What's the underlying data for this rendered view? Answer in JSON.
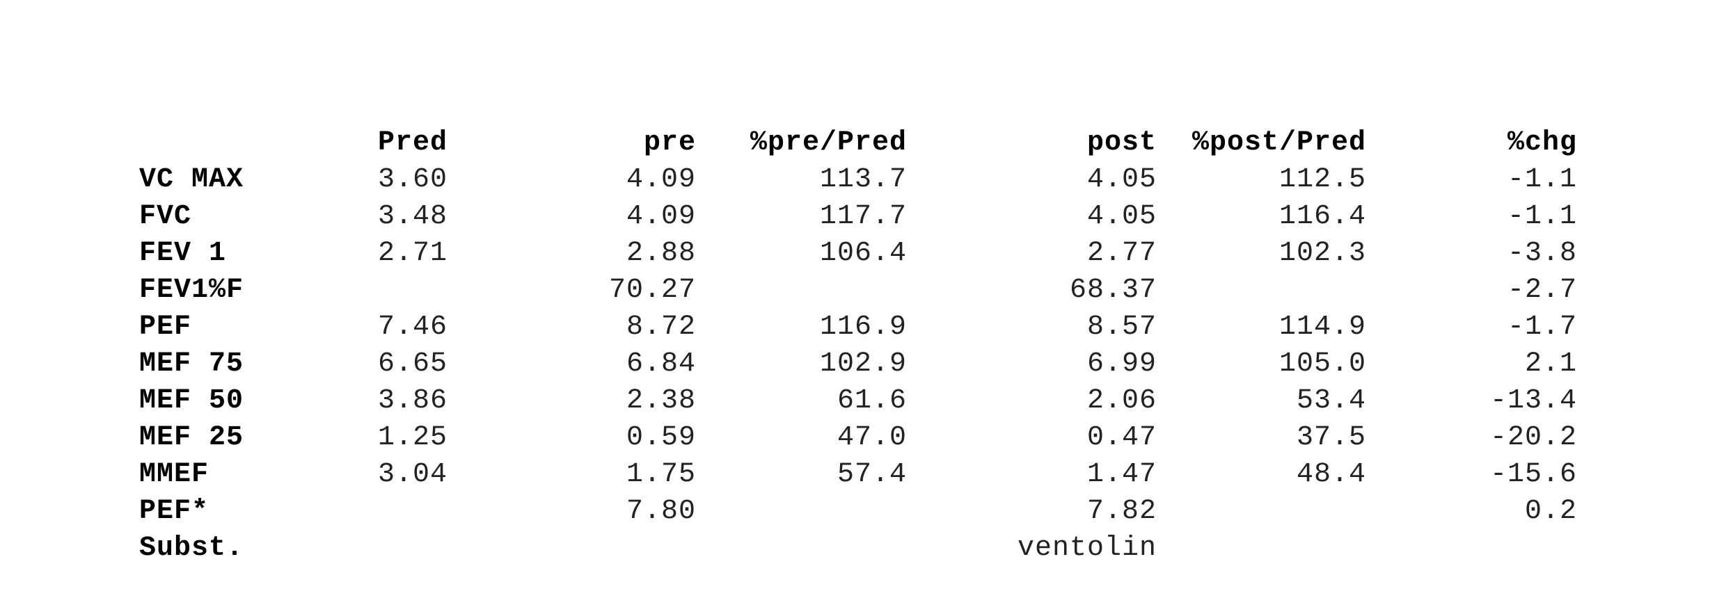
{
  "headers": {
    "pred": "Pred",
    "pre": "pre",
    "pre_pct_pred": "%pre/Pred",
    "post": "post",
    "post_pct_pred": "%post/Pred",
    "chg": "%chg"
  },
  "rows": [
    {
      "label": "VC MAX",
      "pred": "3.60",
      "pre": "4.09",
      "pre_pct_pred": "113.7",
      "post": "4.05",
      "post_pct_pred": "112.5",
      "chg": "-1.1"
    },
    {
      "label": "FVC",
      "pred": "3.48",
      "pre": "4.09",
      "pre_pct_pred": "117.7",
      "post": "4.05",
      "post_pct_pred": "116.4",
      "chg": "-1.1"
    },
    {
      "label": "FEV 1",
      "pred": "2.71",
      "pre": "2.88",
      "pre_pct_pred": "106.4",
      "post": "2.77",
      "post_pct_pred": "102.3",
      "chg": "-3.8"
    },
    {
      "label": "FEV1%F",
      "pred": "",
      "pre": "70.27",
      "pre_pct_pred": "",
      "post": "68.37",
      "post_pct_pred": "",
      "chg": "-2.7"
    },
    {
      "label": "PEF",
      "pred": "7.46",
      "pre": "8.72",
      "pre_pct_pred": "116.9",
      "post": "8.57",
      "post_pct_pred": "114.9",
      "chg": "-1.7"
    },
    {
      "label": "MEF 75",
      "pred": "6.65",
      "pre": "6.84",
      "pre_pct_pred": "102.9",
      "post": "6.99",
      "post_pct_pred": "105.0",
      "chg": "2.1"
    },
    {
      "label": "MEF 50",
      "pred": "3.86",
      "pre": "2.38",
      "pre_pct_pred": "61.6",
      "post": "2.06",
      "post_pct_pred": "53.4",
      "chg": "-13.4"
    },
    {
      "label": "MEF 25",
      "pred": "1.25",
      "pre": "0.59",
      "pre_pct_pred": "47.0",
      "post": "0.47",
      "post_pct_pred": "37.5",
      "chg": "-20.2"
    },
    {
      "label": "MMEF",
      "pred": "3.04",
      "pre": "1.75",
      "pre_pct_pred": "57.4",
      "post": "1.47",
      "post_pct_pred": "48.4",
      "chg": "-15.6"
    },
    {
      "label": "PEF*",
      "pred": "",
      "pre": "7.80",
      "pre_pct_pred": "",
      "post": "7.82",
      "post_pct_pred": "",
      "chg": "0.2"
    },
    {
      "label": "Subst.",
      "pred": "",
      "pre": "",
      "pre_pct_pred": "",
      "post": "ventolin",
      "post_pct_pred": "",
      "chg": ""
    }
  ]
}
